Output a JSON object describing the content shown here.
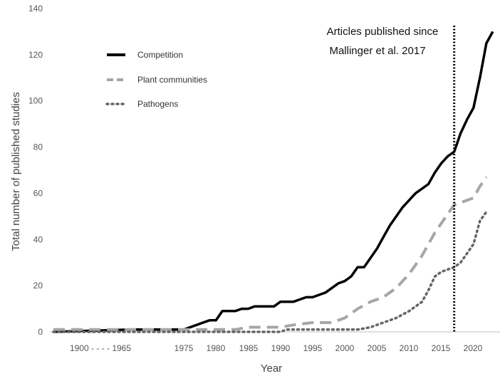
{
  "chart_data": {
    "type": "line",
    "xlabel": "Year",
    "ylabel": "Total number of published studies",
    "ylim": [
      0,
      140
    ],
    "y_ticks": [
      0,
      20,
      40,
      60,
      80,
      100,
      120,
      140
    ],
    "x_tick_labels": [
      "1900 - - - - 1965",
      "1975",
      "1980",
      "1985",
      "1990",
      "1995",
      "2000",
      "2005",
      "2010",
      "2015",
      "2020"
    ],
    "grid": false,
    "legend_position": "upper-left",
    "series": [
      {
        "name": "Competition",
        "style": "solid",
        "color": "#000000",
        "points": [
          [
            "1900",
            0
          ],
          [
            "1965",
            1
          ],
          [
            "1974",
            1
          ],
          [
            "1975",
            1
          ],
          [
            "1976",
            2
          ],
          [
            "1977",
            3
          ],
          [
            "1978",
            4
          ],
          [
            "1979",
            5
          ],
          [
            "1980",
            5
          ],
          [
            "1981",
            9
          ],
          [
            "1982",
            9
          ],
          [
            "1983",
            9
          ],
          [
            "1984",
            10
          ],
          [
            "1985",
            10
          ],
          [
            "1986",
            11
          ],
          [
            "1987",
            11
          ],
          [
            "1988",
            11
          ],
          [
            "1989",
            11
          ],
          [
            "1990",
            13
          ],
          [
            "1991",
            13
          ],
          [
            "1992",
            13
          ],
          [
            "1993",
            14
          ],
          [
            "1994",
            15
          ],
          [
            "1995",
            15
          ],
          [
            "1996",
            16
          ],
          [
            "1997",
            17
          ],
          [
            "1998",
            19
          ],
          [
            "1999",
            21
          ],
          [
            "2000",
            22
          ],
          [
            "2001",
            24
          ],
          [
            "2002",
            28
          ],
          [
            "2003",
            28
          ],
          [
            "2004",
            32
          ],
          [
            "2005",
            36
          ],
          [
            "2006",
            41
          ],
          [
            "2007",
            46
          ],
          [
            "2008",
            50
          ],
          [
            "2009",
            54
          ],
          [
            "2010",
            57
          ],
          [
            "2011",
            60
          ],
          [
            "2012",
            62
          ],
          [
            "2013",
            64
          ],
          [
            "2014",
            69
          ],
          [
            "2015",
            73
          ],
          [
            "2016",
            76
          ],
          [
            "2017",
            78
          ],
          [
            "2018",
            86
          ],
          [
            "2019",
            92
          ],
          [
            "2020",
            97
          ],
          [
            "2021",
            110
          ],
          [
            "2022",
            125
          ],
          [
            "2023",
            130
          ]
        ]
      },
      {
        "name": "Plant communities",
        "style": "dashed",
        "color": "#a6a6a6",
        "points": [
          [
            "1900",
            1
          ],
          [
            "1965",
            1
          ],
          [
            "1974",
            1
          ],
          [
            "1975",
            1
          ],
          [
            "1980",
            1
          ],
          [
            "1983",
            1
          ],
          [
            "1985",
            2
          ],
          [
            "1990",
            2
          ],
          [
            "1992",
            3
          ],
          [
            "1995",
            4
          ],
          [
            "1998",
            4
          ],
          [
            "2000",
            6
          ],
          [
            "2002",
            10
          ],
          [
            "2004",
            13
          ],
          [
            "2006",
            15
          ],
          [
            "2008",
            19
          ],
          [
            "2010",
            25
          ],
          [
            "2012",
            33
          ],
          [
            "2014",
            43
          ],
          [
            "2015",
            47
          ],
          [
            "2016",
            51
          ],
          [
            "2017",
            55
          ],
          [
            "2018",
            56
          ],
          [
            "2019",
            57
          ],
          [
            "2020",
            58
          ],
          [
            "2021",
            63
          ],
          [
            "2022",
            67
          ]
        ]
      },
      {
        "name": "Pathogens",
        "style": "dotted",
        "color": "#666666",
        "points": [
          [
            "1900",
            0
          ],
          [
            "1965",
            0
          ],
          [
            "1975",
            0
          ],
          [
            "1985",
            0
          ],
          [
            "1990",
            0
          ],
          [
            "1991",
            1
          ],
          [
            "1995",
            1
          ],
          [
            "2000",
            1
          ],
          [
            "2002",
            1
          ],
          [
            "2004",
            2
          ],
          [
            "2006",
            4
          ],
          [
            "2008",
            6
          ],
          [
            "2010",
            9
          ],
          [
            "2012",
            13
          ],
          [
            "2013",
            18
          ],
          [
            "2014",
            24
          ],
          [
            "2015",
            26
          ],
          [
            "2016",
            27
          ],
          [
            "2017",
            28
          ],
          [
            "2018",
            30
          ],
          [
            "2019",
            34
          ],
          [
            "2020",
            38
          ],
          [
            "2021",
            48
          ],
          [
            "2022",
            52
          ]
        ]
      }
    ],
    "annotation": {
      "line1": "Articles published since",
      "line2": "Mallinger et al. 2017",
      "x": "2017"
    }
  }
}
